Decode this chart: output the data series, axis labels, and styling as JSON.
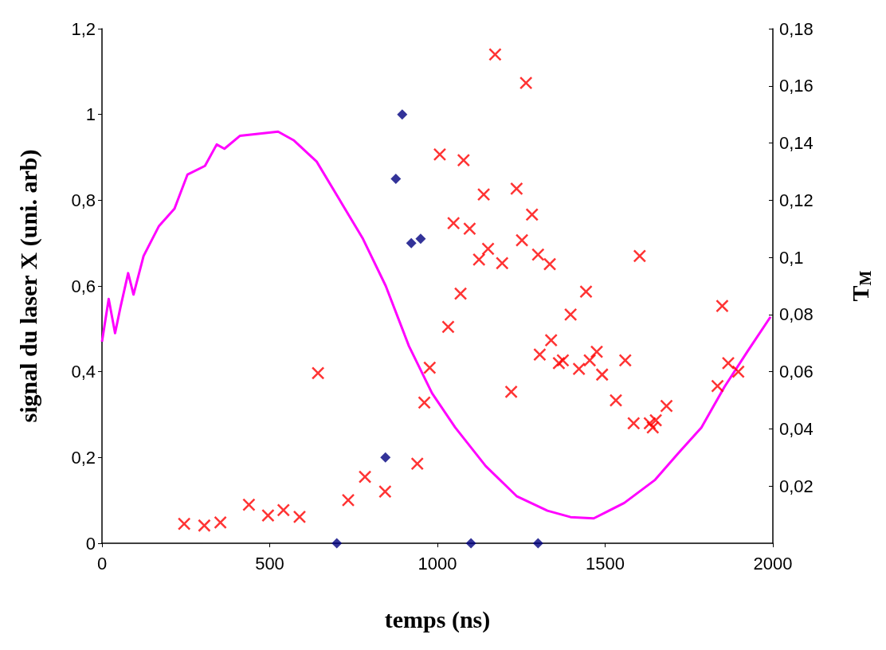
{
  "chart_data": {
    "type": "scatter",
    "xlabel": "temps (ns)",
    "ylabel": "signal du laser X (uni. arb)",
    "y2label": "T$_{M}$",
    "xlim": [
      0,
      2000
    ],
    "xticks": [
      0,
      500,
      1000,
      1500,
      2000
    ],
    "ylim": [
      0,
      1.2
    ],
    "yticks": [
      {
        "value": 0,
        "label": "0"
      },
      {
        "value": 0.2,
        "label": "0,2"
      },
      {
        "value": 0.4,
        "label": "0,4"
      },
      {
        "value": 0.6,
        "label": "0,6"
      },
      {
        "value": 0.8,
        "label": "0,8"
      },
      {
        "value": 1,
        "label": "1"
      },
      {
        "value": 1.2,
        "label": "1,2"
      }
    ],
    "y2lim": [
      0,
      0.18
    ],
    "y2ticks": [
      {
        "value": 0.02,
        "label": "0,02"
      },
      {
        "value": 0.04,
        "label": "0,04"
      },
      {
        "value": 0.06,
        "label": "0,06"
      },
      {
        "value": 0.08,
        "label": "0,08"
      },
      {
        "value": 0.1,
        "label": "0,1"
      },
      {
        "value": 0.12,
        "label": "0,12"
      },
      {
        "value": 0.14,
        "label": "0,14"
      },
      {
        "value": 0.16,
        "label": "0,16"
      },
      {
        "value": 0.18,
        "label": "0,18"
      }
    ],
    "grid": false,
    "series": [
      {
        "type": "line",
        "color": "#ff00ff",
        "marker": "none",
        "line_style": "solid",
        "x": [
          0,
          20,
          39,
          55,
          78,
          94,
          124,
          170,
          216,
          255,
          307,
          342,
          365,
          411,
          525,
          571,
          640,
          709,
          778,
          846,
          915,
          984,
          1053,
          1144,
          1236,
          1328,
          1397,
          1466,
          1557,
          1649,
          1718,
          1787,
          1856,
          1924,
          1993
        ],
        "values": [
          0.47,
          0.57,
          0.49,
          0.55,
          0.63,
          0.58,
          0.67,
          0.74,
          0.78,
          0.86,
          0.88,
          0.93,
          0.92,
          0.95,
          0.96,
          0.94,
          0.89,
          0.8,
          0.71,
          0.6,
          0.46,
          0.35,
          0.27,
          0.18,
          0.11,
          0.076,
          0.061,
          0.058,
          0.094,
          0.148,
          0.21,
          0.27,
          0.365,
          0.447,
          0.528
        ]
      },
      {
        "type": "scatter",
        "color": "#000080",
        "marker": "diamond",
        "x": [
          700,
          845,
          876,
          895,
          922,
          950,
          1100,
          1300
        ],
        "values": [
          0,
          0.2,
          0.85,
          1,
          0.7,
          0.71,
          0,
          0
        ]
      },
      {
        "type": "scatter",
        "color": "#ff0000",
        "marker": "cross",
        "axis": "y2",
        "x": [
          245,
          305,
          353,
          438,
          495,
          541,
          589,
          644,
          734,
          784,
          844,
          940,
          961,
          977,
          1007,
          1032,
          1048,
          1069,
          1078,
          1096,
          1124,
          1138,
          1151,
          1172,
          1193,
          1220,
          1236,
          1252,
          1264,
          1282,
          1300,
          1305,
          1335,
          1339,
          1362,
          1374,
          1397,
          1422,
          1443,
          1454,
          1475,
          1491,
          1532,
          1560,
          1585,
          1603,
          1633,
          1642,
          1651,
          1683,
          1835,
          1849,
          1867,
          1897
        ],
        "values": [
          0.0068,
          0.0062,
          0.0073,
          0.0135,
          0.0097,
          0.0116,
          0.0092,
          0.0595,
          0.0151,
          0.0232,
          0.0181,
          0.0278,
          0.0492,
          0.0614,
          0.136,
          0.0757,
          0.112,
          0.0873,
          0.134,
          0.11,
          0.0992,
          0.122,
          0.103,
          0.171,
          0.098,
          0.053,
          0.124,
          0.106,
          0.161,
          0.115,
          0.101,
          0.066,
          0.0976,
          0.071,
          0.063,
          0.064,
          0.08,
          0.061,
          0.088,
          0.064,
          0.067,
          0.059,
          0.05,
          0.064,
          0.042,
          0.1005,
          0.042,
          0.0405,
          0.043,
          0.048,
          0.055,
          0.083,
          0.063,
          0.06
        ]
      }
    ]
  }
}
